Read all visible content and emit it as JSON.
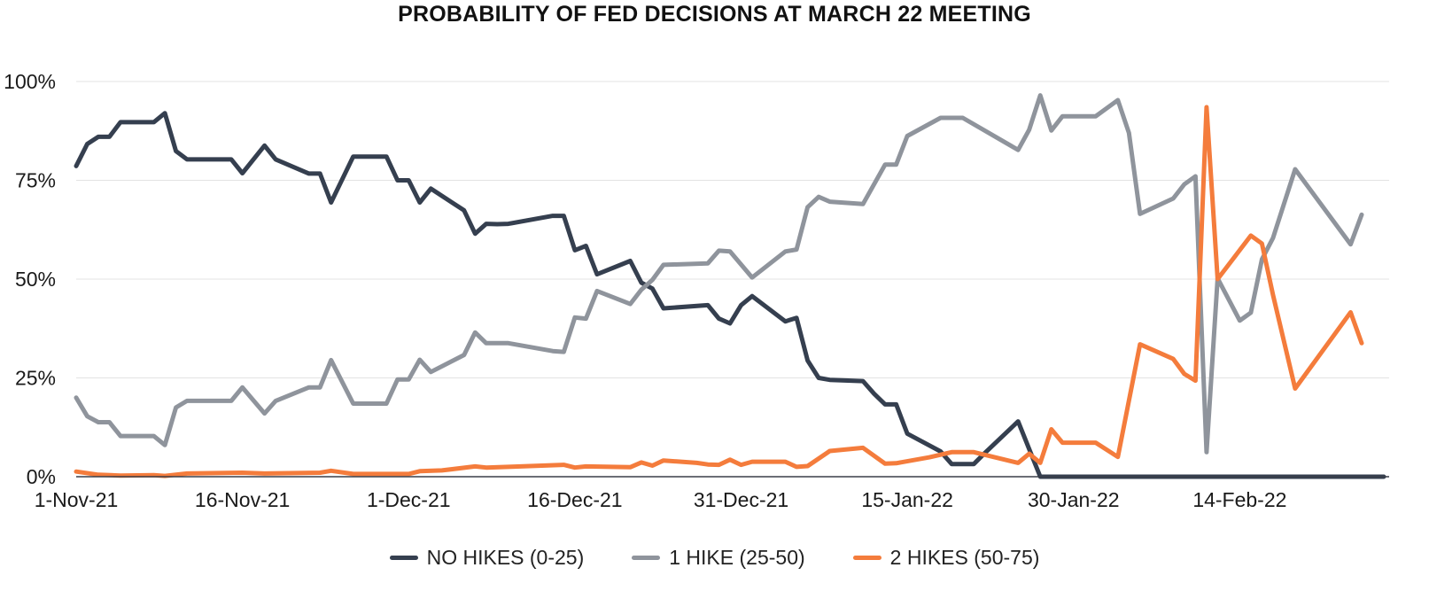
{
  "chart_data": {
    "type": "line",
    "title": "PROBABILITY OF FED DECISIONS AT MARCH 22 MEETING",
    "xlabel": "",
    "ylabel": "",
    "ylim": [
      0,
      100
    ],
    "y_ticks": [
      0,
      25,
      50,
      75,
      100
    ],
    "y_tick_labels": [
      "0%",
      "25%",
      "50%",
      "75%",
      "100%"
    ],
    "x_range": [
      "2021-11-01",
      "2022-02-27"
    ],
    "x_ticks": [
      "2021-11-01",
      "2021-11-16",
      "2021-12-01",
      "2021-12-16",
      "2021-12-31",
      "2022-01-15",
      "2022-01-30",
      "2022-02-14"
    ],
    "x_tick_labels": [
      "1-Nov-21",
      "16-Nov-21",
      "1-Dec-21",
      "16-Dec-21",
      "31-Dec-21",
      "15-Jan-22",
      "30-Jan-22",
      "14-Feb-22"
    ],
    "grid": "horizontal",
    "legend_position": "bottom",
    "series": [
      {
        "name": "NO HIKES (0-25)",
        "color": "#353f4f",
        "points": [
          [
            "2021-11-01",
            78.6
          ],
          [
            "2021-11-02",
            84.2
          ],
          [
            "2021-11-03",
            86.0
          ],
          [
            "2021-11-04",
            86.0
          ],
          [
            "2021-11-05",
            89.7
          ],
          [
            "2021-11-08",
            89.7
          ],
          [
            "2021-11-09",
            92.0
          ],
          [
            "2021-11-10",
            82.4
          ],
          [
            "2021-11-11",
            80.3
          ],
          [
            "2021-11-15",
            80.3
          ],
          [
            "2021-11-16",
            76.8
          ],
          [
            "2021-11-18",
            83.8
          ],
          [
            "2021-11-19",
            80.3
          ],
          [
            "2021-11-22",
            76.7
          ],
          [
            "2021-11-23",
            76.7
          ],
          [
            "2021-11-24",
            69.4
          ],
          [
            "2021-11-26",
            81.0
          ],
          [
            "2021-11-29",
            81.0
          ],
          [
            "2021-11-30",
            75.0
          ],
          [
            "2021-12-01",
            75.0
          ],
          [
            "2021-12-02",
            69.4
          ],
          [
            "2021-12-03",
            72.9
          ],
          [
            "2021-12-06",
            67.4
          ],
          [
            "2021-12-07",
            61.5
          ],
          [
            "2021-12-08",
            64.0
          ],
          [
            "2021-12-09",
            63.9
          ],
          [
            "2021-12-10",
            64.0
          ],
          [
            "2021-12-14",
            66.0
          ],
          [
            "2021-12-15",
            66.0
          ],
          [
            "2021-12-16",
            57.3
          ],
          [
            "2021-12-17",
            58.4
          ],
          [
            "2021-12-18",
            51.2
          ],
          [
            "2021-12-21",
            54.6
          ],
          [
            "2021-12-22",
            49.1
          ],
          [
            "2021-12-23",
            47.6
          ],
          [
            "2021-12-24",
            42.6
          ],
          [
            "2021-12-28",
            43.4
          ],
          [
            "2021-12-29",
            40.0
          ],
          [
            "2021-12-30",
            38.8
          ],
          [
            "2021-12-31",
            43.4
          ],
          [
            "2022-01-01",
            45.7
          ],
          [
            "2022-01-04",
            39.3
          ],
          [
            "2022-01-05",
            40.2
          ],
          [
            "2022-01-06",
            29.4
          ],
          [
            "2022-01-07",
            25.0
          ],
          [
            "2022-01-08",
            24.5
          ],
          [
            "2022-01-11",
            24.2
          ],
          [
            "2022-01-12",
            21.0
          ],
          [
            "2022-01-13",
            18.3
          ],
          [
            "2022-01-14",
            18.3
          ],
          [
            "2022-01-15",
            10.9
          ],
          [
            "2022-01-18",
            6.4
          ],
          [
            "2022-01-19",
            3.2
          ],
          [
            "2022-01-21",
            3.2
          ],
          [
            "2022-01-22",
            6.0
          ],
          [
            "2022-01-25",
            14.0
          ],
          [
            "2022-01-27",
            0.0
          ],
          [
            "2022-02-27",
            0.0
          ]
        ]
      },
      {
        "name": "1 HIKE (25-50)",
        "color": "#8f949c",
        "points": [
          [
            "2021-11-01",
            20.0
          ],
          [
            "2021-11-02",
            15.3
          ],
          [
            "2021-11-03",
            13.8
          ],
          [
            "2021-11-04",
            13.8
          ],
          [
            "2021-11-05",
            10.3
          ],
          [
            "2021-11-08",
            10.3
          ],
          [
            "2021-11-09",
            8.0
          ],
          [
            "2021-11-10",
            17.5
          ],
          [
            "2021-11-11",
            19.2
          ],
          [
            "2021-11-15",
            19.2
          ],
          [
            "2021-11-16",
            22.6
          ],
          [
            "2021-11-18",
            16.0
          ],
          [
            "2021-11-19",
            19.2
          ],
          [
            "2021-11-22",
            22.6
          ],
          [
            "2021-11-23",
            22.6
          ],
          [
            "2021-11-24",
            29.5
          ],
          [
            "2021-11-26",
            18.5
          ],
          [
            "2021-11-29",
            18.5
          ],
          [
            "2021-11-30",
            24.6
          ],
          [
            "2021-12-01",
            24.6
          ],
          [
            "2021-12-02",
            29.6
          ],
          [
            "2021-12-03",
            26.5
          ],
          [
            "2021-12-06",
            30.8
          ],
          [
            "2021-12-07",
            36.5
          ],
          [
            "2021-12-08",
            33.8
          ],
          [
            "2021-12-10",
            33.8
          ],
          [
            "2021-12-14",
            31.8
          ],
          [
            "2021-12-15",
            31.6
          ],
          [
            "2021-12-16",
            40.3
          ],
          [
            "2021-12-17",
            40.0
          ],
          [
            "2021-12-18",
            47.0
          ],
          [
            "2021-12-21",
            43.7
          ],
          [
            "2021-12-22",
            47.3
          ],
          [
            "2021-12-23",
            49.8
          ],
          [
            "2021-12-24",
            53.6
          ],
          [
            "2021-12-28",
            54.0
          ],
          [
            "2021-12-29",
            57.2
          ],
          [
            "2021-12-30",
            57.0
          ],
          [
            "2022-01-01",
            50.4
          ],
          [
            "2022-01-04",
            57.0
          ],
          [
            "2022-01-05",
            57.5
          ],
          [
            "2022-01-06",
            68.2
          ],
          [
            "2022-01-07",
            70.8
          ],
          [
            "2022-01-08",
            69.6
          ],
          [
            "2022-01-11",
            69.0
          ],
          [
            "2022-01-13",
            79.0
          ],
          [
            "2022-01-14",
            79.0
          ],
          [
            "2022-01-15",
            86.2
          ],
          [
            "2022-01-18",
            90.8
          ],
          [
            "2022-01-20",
            90.8
          ],
          [
            "2022-01-25",
            82.7
          ],
          [
            "2022-01-26",
            87.8
          ],
          [
            "2022-01-27",
            96.5
          ],
          [
            "2022-01-28",
            87.6
          ],
          [
            "2022-01-29",
            91.2
          ],
          [
            "2022-02-01",
            91.2
          ],
          [
            "2022-02-03",
            95.3
          ],
          [
            "2022-02-04",
            87.0
          ],
          [
            "2022-02-05",
            66.5
          ],
          [
            "2022-02-08",
            70.4
          ],
          [
            "2022-02-09",
            74.0
          ],
          [
            "2022-02-10",
            76.0
          ],
          [
            "2022-02-11",
            6.2
          ],
          [
            "2022-02-12",
            50.2
          ],
          [
            "2022-02-14",
            39.5
          ],
          [
            "2022-02-15",
            41.5
          ],
          [
            "2022-02-16",
            55.0
          ],
          [
            "2022-02-17",
            60.4
          ],
          [
            "2022-02-19",
            77.8
          ],
          [
            "2022-02-24",
            58.8
          ],
          [
            "2022-02-25",
            66.3
          ]
        ]
      },
      {
        "name": "2 HIKES (50-75)",
        "color": "#f47c3c",
        "points": [
          [
            "2021-11-01",
            1.3
          ],
          [
            "2021-11-03",
            0.5
          ],
          [
            "2021-11-05",
            0.3
          ],
          [
            "2021-11-08",
            0.4
          ],
          [
            "2021-11-09",
            0.2
          ],
          [
            "2021-11-11",
            0.8
          ],
          [
            "2021-11-16",
            1.0
          ],
          [
            "2021-11-18",
            0.8
          ],
          [
            "2021-11-23",
            1.0
          ],
          [
            "2021-11-24",
            1.5
          ],
          [
            "2021-11-26",
            0.7
          ],
          [
            "2021-12-01",
            0.7
          ],
          [
            "2021-12-02",
            1.4
          ],
          [
            "2021-12-04",
            1.6
          ],
          [
            "2021-12-07",
            2.6
          ],
          [
            "2021-12-08",
            2.3
          ],
          [
            "2021-12-10",
            2.5
          ],
          [
            "2021-12-15",
            3.0
          ],
          [
            "2021-12-16",
            2.3
          ],
          [
            "2021-12-17",
            2.6
          ],
          [
            "2021-12-21",
            2.4
          ],
          [
            "2021-12-22",
            3.6
          ],
          [
            "2021-12-23",
            2.8
          ],
          [
            "2021-12-24",
            4.1
          ],
          [
            "2021-12-27",
            3.5
          ],
          [
            "2021-12-28",
            3.1
          ],
          [
            "2021-12-29",
            3.0
          ],
          [
            "2021-12-30",
            4.3
          ],
          [
            "2021-12-31",
            3.0
          ],
          [
            "2022-01-01",
            3.8
          ],
          [
            "2022-01-04",
            3.8
          ],
          [
            "2022-01-05",
            2.5
          ],
          [
            "2022-01-06",
            2.7
          ],
          [
            "2022-01-08",
            6.5
          ],
          [
            "2022-01-11",
            7.3
          ],
          [
            "2022-01-13",
            3.3
          ],
          [
            "2022-01-14",
            3.4
          ],
          [
            "2022-01-17",
            4.9
          ],
          [
            "2022-01-19",
            6.2
          ],
          [
            "2022-01-21",
            6.2
          ],
          [
            "2022-01-25",
            3.5
          ],
          [
            "2022-01-26",
            5.8
          ],
          [
            "2022-01-27",
            3.5
          ],
          [
            "2022-01-28",
            12.0
          ],
          [
            "2022-01-29",
            8.6
          ],
          [
            "2022-02-01",
            8.6
          ],
          [
            "2022-02-03",
            5.0
          ],
          [
            "2022-02-05",
            33.5
          ],
          [
            "2022-02-08",
            29.8
          ],
          [
            "2022-02-09",
            26.0
          ],
          [
            "2022-02-10",
            24.3
          ],
          [
            "2022-02-11",
            93.5
          ],
          [
            "2022-02-12",
            50.0
          ],
          [
            "2022-02-15",
            61.0
          ],
          [
            "2022-02-16",
            59.0
          ],
          [
            "2022-02-17",
            46.0
          ],
          [
            "2022-02-19",
            22.3
          ],
          [
            "2022-02-24",
            41.6
          ],
          [
            "2022-02-25",
            33.8
          ]
        ]
      }
    ]
  }
}
